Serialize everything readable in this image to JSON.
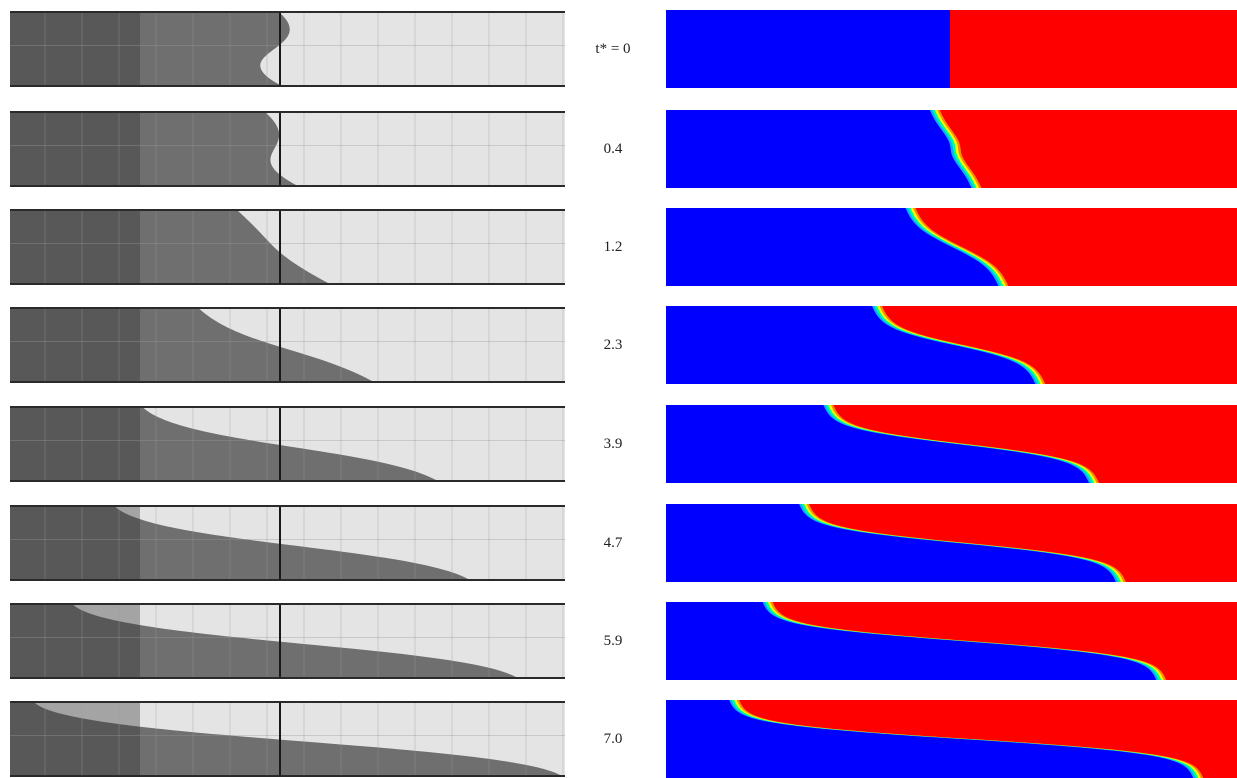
{
  "figure": {
    "time_symbol": "t*",
    "rows": [
      {
        "label": "t* = 0",
        "t": 0
      },
      {
        "label": "0.4",
        "t": 0.4
      },
      {
        "label": "1.2",
        "t": 1.2
      },
      {
        "label": "2.3",
        "t": 2.3
      },
      {
        "label": "3.9",
        "t": 3.9
      },
      {
        "label": "4.7",
        "t": 4.7
      },
      {
        "label": "5.9",
        "t": 5.9
      },
      {
        "label": "7.0",
        "t": 7.0
      }
    ],
    "colors": {
      "simulation_dense": "#0000ff",
      "simulation_light": "#ff0000",
      "interface_band": [
        "#00b4ff",
        "#00ff88",
        "#ffff00",
        "#ff8800"
      ],
      "photo_dense": "#5a5a5a",
      "photo_light": "#e4e4e4"
    }
  }
}
